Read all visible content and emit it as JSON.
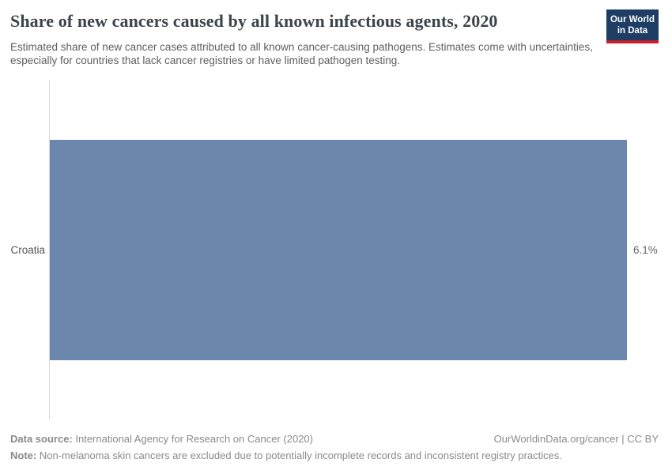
{
  "header": {
    "title": "Share of new cancers caused by all known infectious agents, 2020",
    "subtitle": "Estimated share of new cancer cases attributed to all known cancer-causing pathogens. Estimates come with uncertainties, especially for countries that lack cancer registries or have limited pathogen testing.",
    "logo": {
      "line1": "Our World",
      "line2": "in Data"
    }
  },
  "chart_data": {
    "type": "bar",
    "orientation": "horizontal",
    "title": "Share of new cancers caused by all known infectious agents, 2020",
    "categories": [
      "Croatia"
    ],
    "values": [
      6.1
    ],
    "value_labels": [
      "6.1%"
    ],
    "xlabel": "",
    "ylabel": "",
    "xlim": [
      0,
      6.1
    ],
    "grid": false,
    "legend": "none",
    "bar_color": "#6c87ad"
  },
  "footer": {
    "data_source_label": "Data source:",
    "data_source_value": " International Agency for Research on Cancer (2020)",
    "attribution": "OurWorldinData.org/cancer | CC BY",
    "note_label": "Note:",
    "note_value": " Non-melanoma skin cancers are excluded due to potentially incomplete records and inconsistent registry practices."
  },
  "colors": {
    "bar": "#6c87ad",
    "logo_background": "#1d3d63",
    "logo_accent": "#c7202c",
    "axis_line": "#dadada",
    "title_text": "#3d444b",
    "subtitle_text": "#5f5f5f",
    "footer_text": "#8a8a8a"
  }
}
